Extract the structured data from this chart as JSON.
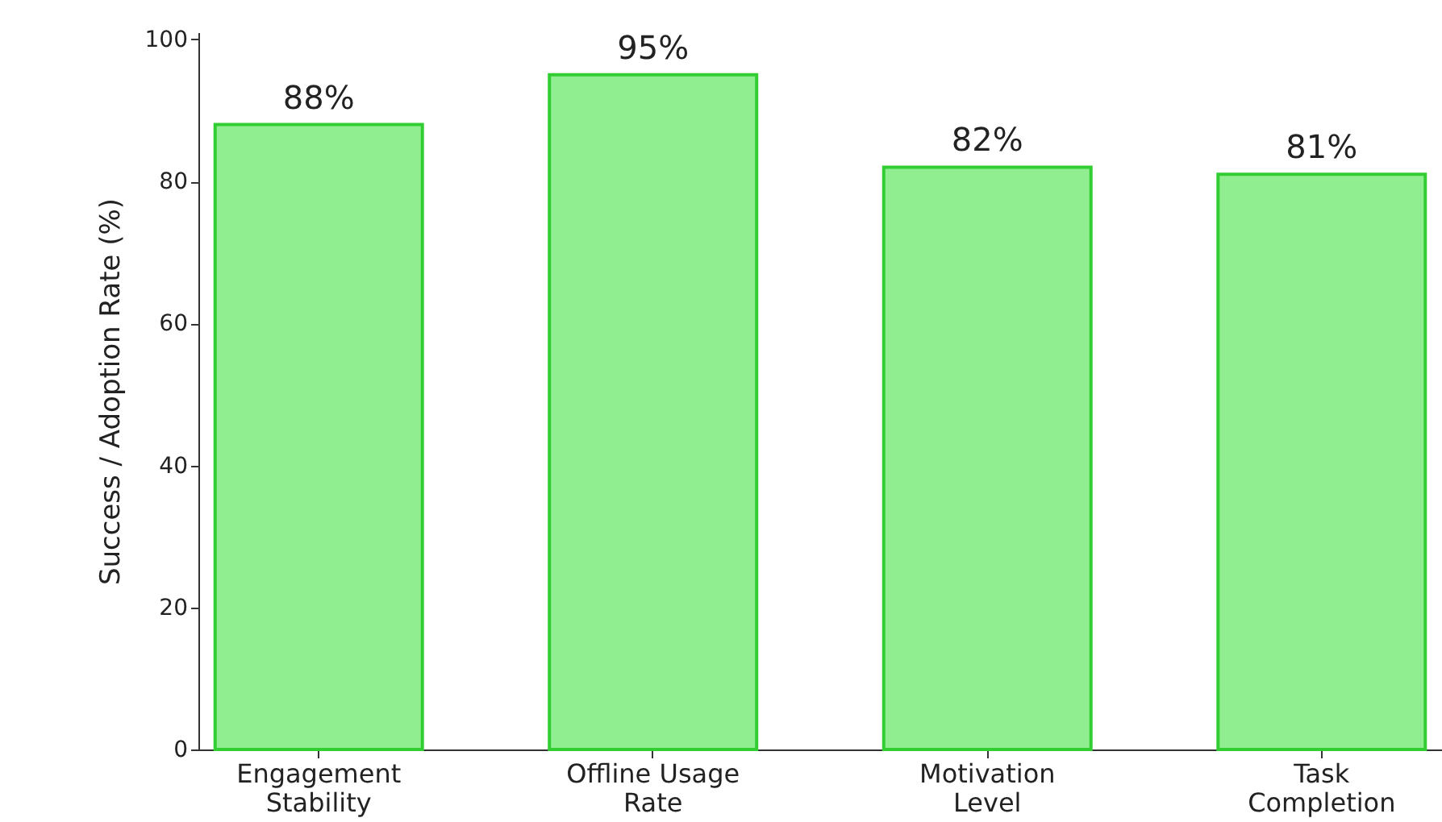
{
  "chart_data": {
    "type": "bar",
    "ylabel": "Success / Adoption Rate (%)",
    "categories": [
      "Engagement\nStability",
      "Offline Usage\nRate",
      "Motivation\nLevel",
      "Task\nCompletion"
    ],
    "values": [
      88,
      95,
      82,
      81
    ],
    "value_labels": [
      "88%",
      "95%",
      "82%",
      "81%"
    ],
    "color": "#90ee90",
    "ylim": [
      0,
      101
    ],
    "yticks": [
      0,
      20,
      40,
      60,
      80,
      100
    ],
    "grid": false
  }
}
